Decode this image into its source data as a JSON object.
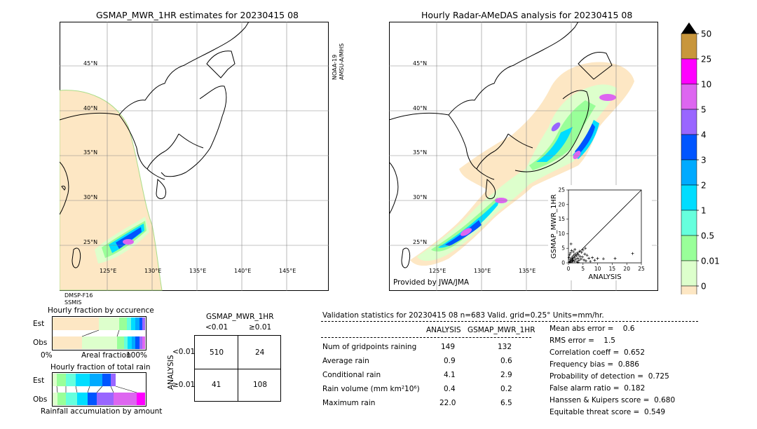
{
  "left_map": {
    "title": "GSMAP_MWR_1HR estimates for 20230415 08",
    "lat_labels": [
      "45°N",
      "40°N",
      "35°N",
      "30°N",
      "25°N"
    ],
    "lon_labels": [
      "125°E",
      "130°E",
      "135°E",
      "140°E",
      "145°E"
    ],
    "sensor_right": "NOAA-19\nAMSU-A/MHS",
    "sensor_right_1": "NOAA-19",
    "sensor_right_2": "AMSU-A/MHS",
    "sensor_bottom_1": "DMSP-F16",
    "sensor_bottom_2": "SSMIS"
  },
  "right_map": {
    "title": "Hourly Radar-AMeDAS analysis for 20230415 08",
    "lat_labels": [
      "45°N",
      "40°N",
      "35°N",
      "30°N",
      "25°N"
    ],
    "lon_labels": [
      "125°E",
      "130°E",
      "135°E"
    ],
    "credit": "Provided by JWA/JMA"
  },
  "colorbar": {
    "labels": [
      "50",
      "25",
      "10",
      "5",
      "4",
      "3",
      "2",
      "1",
      "0.5",
      "0.01",
      "0"
    ],
    "colors": [
      "#c8963c",
      "#ff00ff",
      "#dd66f0",
      "#9966ff",
      "#0055ff",
      "#00aaff",
      "#00ddff",
      "#66ffdd",
      "#99ff99",
      "#ddffcc",
      "#fde7c4"
    ]
  },
  "fraction_panels": {
    "occurrence_title": "Hourly fraction by occurence",
    "total_title": "Hourly fraction of total rain",
    "est_label": "Est",
    "obs_label": "Obs",
    "axis_left": "0%",
    "axis_mid": "Areal fraction",
    "axis_right": "100%",
    "bottom_caption": "Rainfall accumulation by amount"
  },
  "contingency": {
    "title": "GSMAP_MWR_1HR",
    "col_lt": "<0.01",
    "col_ge": "≥0.01",
    "row_axis": "ANALYSIS",
    "row_lt": "<0.01",
    "row_ge": "≥0.01",
    "cells": [
      "510",
      "24",
      "41",
      "108"
    ]
  },
  "validation": {
    "header": "Validation statistics for 20230415 08  n=683 Valid. grid=0.25° Units=mm/hr.",
    "col_analysis": "ANALYSIS",
    "col_gsmap": "GSMAP_MWR_1HR",
    "rows": [
      {
        "label": "Num of gridpoints raining",
        "analysis": "149",
        "gsmap": "132"
      },
      {
        "label": "Average rain",
        "analysis": "0.9",
        "gsmap": "0.6"
      },
      {
        "label": "Conditional rain",
        "analysis": "4.1",
        "gsmap": "2.9"
      },
      {
        "label": "Rain volume (mm km²10⁶)",
        "analysis": "0.4",
        "gsmap": "0.2"
      },
      {
        "label": "Maximum rain",
        "analysis": "22.0",
        "gsmap": "6.5"
      }
    ],
    "scores": [
      "Mean abs error =    0.6",
      "RMS error =    1.5",
      "Correlation coeff =  0.652",
      "Frequency bias =  0.886",
      "Probability of detection =  0.725",
      "False alarm ratio =  0.182",
      "Hanssen & Kuipers score =  0.680",
      "Equitable threat score =  0.549"
    ]
  },
  "chart_data": {
    "type": "scatter",
    "xlabel": "ANALYSIS",
    "ylabel": "GSMAP_MWR_1HR",
    "xlim": [
      0,
      25
    ],
    "ylim": [
      0,
      25
    ],
    "xticks": [
      "0",
      "5",
      "10",
      "15",
      "20",
      "25"
    ],
    "yticks": [
      "0",
      "5",
      "10",
      "15",
      "20",
      "25"
    ],
    "points": [
      [
        0.3,
        0.4
      ],
      [
        0.5,
        0.2
      ],
      [
        0.6,
        1.1
      ],
      [
        0.8,
        0.5
      ],
      [
        1.0,
        1.5
      ],
      [
        1.2,
        0.3
      ],
      [
        1.3,
        2.0
      ],
      [
        1.5,
        0.8
      ],
      [
        1.6,
        1.4
      ],
      [
        1.8,
        2.6
      ],
      [
        2.0,
        0.6
      ],
      [
        2.1,
        1.9
      ],
      [
        2.3,
        3.0
      ],
      [
        2.5,
        1.2
      ],
      [
        2.7,
        2.4
      ],
      [
        2.9,
        0.4
      ],
      [
        3.0,
        3.4
      ],
      [
        3.2,
        1.6
      ],
      [
        3.4,
        2.8
      ],
      [
        3.6,
        0.9
      ],
      [
        3.8,
        4.0
      ],
      [
        4.0,
        2.2
      ],
      [
        4.3,
        1.3
      ],
      [
        4.5,
        3.6
      ],
      [
        4.8,
        2.0
      ],
      [
        5.0,
        4.4
      ],
      [
        5.3,
        1.0
      ],
      [
        5.6,
        3.0
      ],
      [
        6.0,
        0.7
      ],
      [
        6.4,
        2.6
      ],
      [
        7.0,
        1.6
      ],
      [
        7.5,
        0.5
      ],
      [
        8.2,
        1.8
      ],
      [
        9.0,
        0.9
      ],
      [
        10.0,
        1.5
      ],
      [
        12.0,
        1.4
      ],
      [
        16.0,
        1.5
      ],
      [
        22.0,
        3.2
      ],
      [
        0.2,
        1.8
      ],
      [
        0.4,
        2.7
      ],
      [
        0.7,
        3.4
      ],
      [
        1.1,
        4.2
      ],
      [
        1.4,
        0.9
      ],
      [
        2.2,
        4.6
      ],
      [
        0.9,
        6.5
      ],
      [
        3.3,
        0.2
      ],
      [
        5.8,
        5.0
      ],
      [
        1.7,
        3.8
      ]
    ]
  }
}
